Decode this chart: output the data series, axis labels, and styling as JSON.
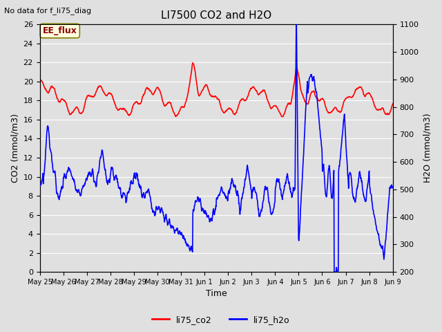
{
  "title": "LI7500 CO2 and H2O",
  "top_left_text": "No data for f_li75_diag",
  "annotation_box": "EE_flux",
  "xlabel": "Time",
  "ylabel_left": "CO2 (mmol/m3)",
  "ylabel_right": "H2O (mmol/m3)",
  "ylim_left": [
    0,
    26
  ],
  "ylim_right": [
    200,
    1100
  ],
  "yticks_left": [
    0,
    2,
    4,
    6,
    8,
    10,
    12,
    14,
    16,
    18,
    20,
    22,
    24,
    26
  ],
  "yticks_right": [
    200,
    300,
    400,
    500,
    600,
    700,
    800,
    900,
    1000,
    1100
  ],
  "xtick_labels": [
    "May 25",
    "May 26",
    "May 27",
    "May 28",
    "May 29",
    "May 30",
    "May 31",
    "Jun 1",
    "Jun 2",
    "Jun 3",
    "Jun 4",
    "Jun 5",
    "Jun 6",
    "Jun 7",
    "Jun 8",
    "Jun 9"
  ],
  "background_color": "#e0e0e0",
  "axes_background": "#e0e0e0",
  "grid_color": "#ffffff",
  "co2_color": "red",
  "h2o_color": "blue",
  "legend_co2": "li75_co2",
  "legend_h2o": "li75_h2o",
  "co2_linewidth": 1.2,
  "h2o_linewidth": 1.2,
  "figsize": [
    6.4,
    4.8
  ],
  "dpi": 100
}
